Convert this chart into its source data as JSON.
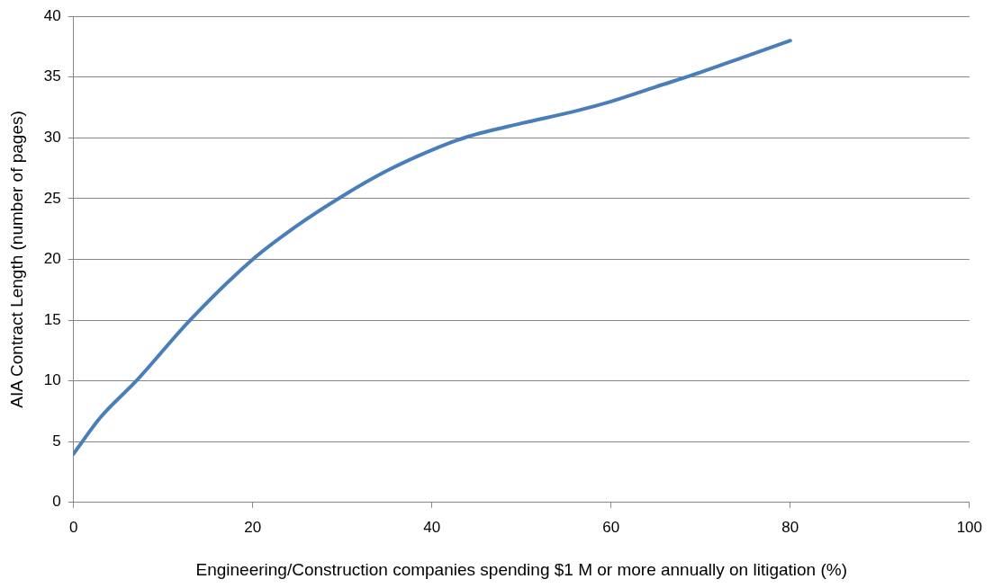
{
  "chart_data": {
    "type": "line",
    "xlabel": "Engineering/Construction companies spending $1 M or more annually on litigation (%)",
    "ylabel": "AIA Contract Length (number of pages)",
    "x": [
      0,
      3,
      7,
      13,
      20,
      25,
      30,
      35,
      40,
      44,
      50,
      56,
      60,
      65,
      70,
      75,
      80
    ],
    "series": [
      {
        "color": "#4a7ebb",
        "values": [
          4,
          7,
          10,
          15,
          20,
          22.8,
          25.2,
          27.3,
          29,
          30.1,
          31.2,
          32.2,
          33,
          34.2,
          35.4,
          36.7,
          38
        ]
      }
    ],
    "xlim": [
      0,
      100
    ],
    "xticks": [
      0,
      20,
      40,
      60,
      80,
      100
    ],
    "ylim": [
      0,
      40
    ],
    "yticks": [
      0,
      5,
      10,
      15,
      20,
      25,
      30,
      35,
      40
    ],
    "grid": "y",
    "legend": false,
    "marker": "none",
    "line_style": "solid"
  }
}
